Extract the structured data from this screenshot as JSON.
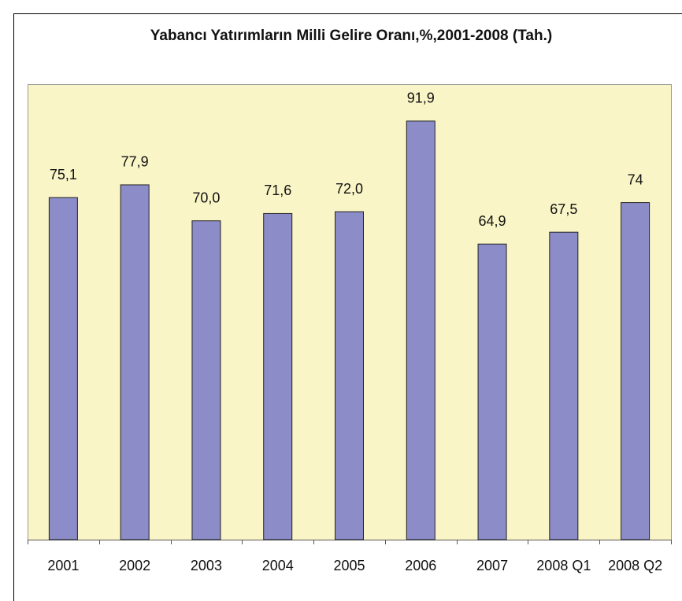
{
  "chart_data": {
    "type": "bar",
    "title": "Yabancı Yatırımların Milli Gelire Oranı,%,2001-2008 (Tah.)",
    "categories": [
      "2001",
      "2002",
      "2003",
      "2004",
      "2005",
      "2006",
      "2007",
      "2008 Q1",
      "2008 Q2"
    ],
    "values": [
      75.1,
      77.9,
      70.0,
      71.6,
      72.0,
      91.9,
      64.9,
      67.5,
      74
    ],
    "value_labels": [
      "75,1",
      "77,9",
      "70,0",
      "71,6",
      "72,0",
      "91,9",
      "64,9",
      "67,5",
      "74"
    ],
    "color": "#8c8cc8",
    "ylim": [
      0,
      100
    ]
  }
}
